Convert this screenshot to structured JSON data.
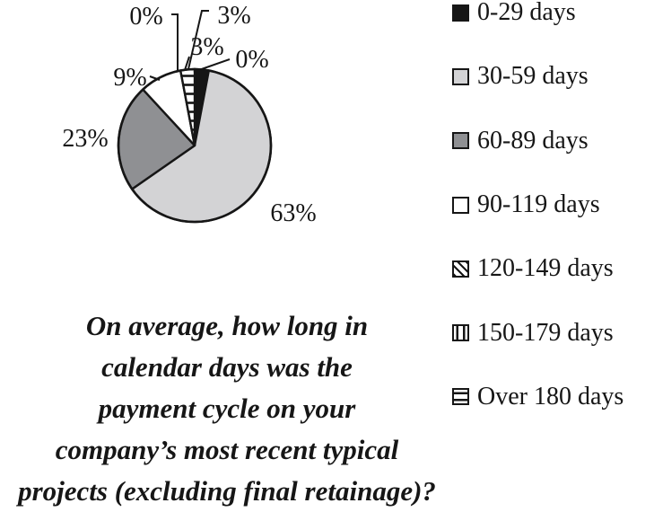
{
  "chart_data": {
    "type": "pie",
    "title": "",
    "categories": [
      "0-29 days",
      "30-59 days",
      "60-89 days",
      "90-119 days",
      "120-149 days",
      "150-179 days",
      "Over 180 days"
    ],
    "values": [
      3,
      63,
      23,
      9,
      0,
      3,
      0
    ],
    "unit": "%",
    "slice_labels": [
      "3%",
      "63%",
      "23%",
      "9%",
      "0%",
      "3%",
      "0%"
    ],
    "pie_slice_fills": [
      "#161616",
      "#d3d3d5",
      "#8f9093",
      "#ffffff",
      "pat-diag",
      "pat-hlines",
      "pat-hlines"
    ],
    "outline_color": "#161616",
    "legend_position": "right",
    "start_angle_deg": 0,
    "direction": "clockwise"
  },
  "legend": {
    "items": [
      {
        "label": "0-29 days",
        "swatch": "black"
      },
      {
        "label": "30-59 days",
        "swatch": "light-gray"
      },
      {
        "label": "60-89 days",
        "swatch": "dark-gray"
      },
      {
        "label": "90-119 days",
        "swatch": "white"
      },
      {
        "label": "120-149 days",
        "swatch": "diagonal-dots"
      },
      {
        "label": "150-179 days",
        "swatch": "vertical-lines"
      },
      {
        "label": "Over 180 days",
        "swatch": "horizontal-lines"
      }
    ]
  },
  "caption": {
    "lines": [
      "On average, how long in",
      "calendar days was the",
      "payment cycle on your",
      "company’s most recent typical",
      "projects (excluding final retainage)?"
    ]
  }
}
